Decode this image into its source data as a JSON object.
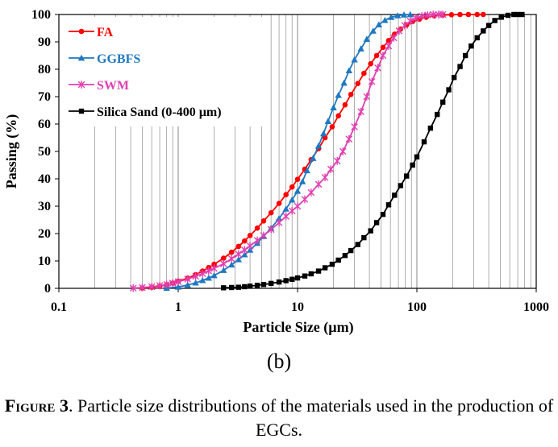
{
  "chart_data": {
    "type": "line",
    "title": "",
    "xlabel": "Particle Size (µm)",
    "ylabel": "Passing (%)",
    "xscale": "log",
    "xlim": [
      0.1,
      1000
    ],
    "ylim": [
      0,
      100
    ],
    "x_tick_labels": [
      "0.1",
      "1",
      "10",
      "100",
      "1000"
    ],
    "y_tick_labels": [
      "0",
      "10",
      "20",
      "30",
      "40",
      "50",
      "60",
      "70",
      "80",
      "90",
      "100"
    ],
    "grid": "vertical-minor",
    "legend_position": "top-left",
    "series": [
      {
        "name": "FA",
        "color": "#ff0000",
        "marker": "circle",
        "points": [
          [
            0.5,
            0.1
          ],
          [
            0.6,
            0.4
          ],
          [
            0.7,
            0.8
          ],
          [
            0.8,
            1.3
          ],
          [
            0.9,
            1.9
          ],
          [
            1.0,
            2.6
          ],
          [
            1.2,
            3.7
          ],
          [
            1.4,
            5.0
          ],
          [
            1.6,
            6.3
          ],
          [
            1.8,
            7.6
          ],
          [
            2.0,
            8.8
          ],
          [
            2.4,
            11.0
          ],
          [
            2.8,
            13.2
          ],
          [
            3.2,
            15.3
          ],
          [
            3.6,
            17.3
          ],
          [
            4.0,
            19.3
          ],
          [
            4.6,
            22.0
          ],
          [
            5.2,
            24.6
          ],
          [
            6.0,
            27.6
          ],
          [
            7.0,
            31.0
          ],
          [
            8.0,
            34.2
          ],
          [
            9.0,
            37.0
          ],
          [
            10.0,
            39.8
          ],
          [
            11.5,
            43.5
          ],
          [
            13.0,
            47.0
          ],
          [
            15.0,
            51.0
          ],
          [
            17.0,
            55.0
          ],
          [
            19.5,
            59.0
          ],
          [
            22.0,
            63.0
          ],
          [
            25.0,
            67.0
          ],
          [
            28.0,
            70.8
          ],
          [
            32.0,
            74.8
          ],
          [
            36.0,
            78.5
          ],
          [
            41.0,
            82.0
          ],
          [
            46.0,
            85.0
          ],
          [
            52.0,
            88.0
          ],
          [
            58.0,
            90.5
          ],
          [
            65.0,
            92.8
          ],
          [
            73.0,
            94.7
          ],
          [
            82.0,
            96.2
          ],
          [
            92.0,
            97.4
          ],
          [
            105.0,
            98.3
          ],
          [
            120.0,
            99.0
          ],
          [
            140.0,
            99.5
          ],
          [
            165.0,
            99.8
          ],
          [
            195.0,
            99.9
          ],
          [
            230.0,
            100
          ],
          [
            270.0,
            100
          ],
          [
            320.0,
            100
          ],
          [
            360.0,
            100
          ]
        ]
      },
      {
        "name": "GGBFS",
        "color": "#1f78c1",
        "marker": "triangle",
        "points": [
          [
            0.8,
            0.1
          ],
          [
            1.0,
            0.5
          ],
          [
            1.2,
            1.2
          ],
          [
            1.4,
            2.0
          ],
          [
            1.6,
            2.9
          ],
          [
            1.8,
            3.8
          ],
          [
            2.0,
            4.7
          ],
          [
            2.4,
            6.6
          ],
          [
            2.8,
            8.6
          ],
          [
            3.2,
            10.5
          ],
          [
            3.6,
            12.3
          ],
          [
            4.0,
            14.0
          ],
          [
            4.6,
            16.5
          ],
          [
            5.2,
            19.0
          ],
          [
            6.0,
            22.0
          ],
          [
            7.0,
            25.5
          ],
          [
            8.0,
            29.0
          ],
          [
            9.0,
            32.3
          ],
          [
            10.0,
            35.5
          ],
          [
            11.0,
            39.0
          ],
          [
            12.0,
            43.0
          ],
          [
            13.5,
            47.5
          ],
          [
            15.0,
            52.0
          ],
          [
            16.5,
            56.5
          ],
          [
            18.0,
            61.0
          ],
          [
            20.0,
            66.0
          ],
          [
            22.0,
            70.5
          ],
          [
            24.5,
            75.0
          ],
          [
            27.0,
            79.5
          ],
          [
            30.0,
            83.5
          ],
          [
            34.0,
            87.5
          ],
          [
            38.0,
            91.0
          ],
          [
            43.0,
            94.0
          ],
          [
            48.0,
            96.3
          ],
          [
            54.0,
            97.9
          ],
          [
            61.0,
            99.0
          ],
          [
            69.0,
            99.6
          ],
          [
            78.0,
            99.9
          ],
          [
            88.0,
            100
          ]
        ]
      },
      {
        "name": "SWM",
        "color": "#e040b0",
        "marker": "star",
        "points": [
          [
            0.42,
            0.1
          ],
          [
            0.5,
            0.3
          ],
          [
            0.6,
            0.6
          ],
          [
            0.7,
            1.0
          ],
          [
            0.8,
            1.4
          ],
          [
            0.9,
            1.9
          ],
          [
            1.0,
            2.4
          ],
          [
            1.2,
            3.4
          ],
          [
            1.4,
            4.4
          ],
          [
            1.6,
            5.4
          ],
          [
            1.8,
            6.4
          ],
          [
            2.0,
            7.3
          ],
          [
            2.4,
            9.0
          ],
          [
            2.8,
            10.8
          ],
          [
            3.2,
            12.5
          ],
          [
            3.6,
            14.0
          ],
          [
            4.0,
            15.5
          ],
          [
            4.6,
            17.5
          ],
          [
            5.2,
            19.3
          ],
          [
            6.0,
            21.5
          ],
          [
            7.0,
            24.0
          ],
          [
            8.0,
            26.3
          ],
          [
            9.0,
            28.3
          ],
          [
            10.0,
            30.0
          ],
          [
            11.5,
            32.5
          ],
          [
            13.0,
            35.0
          ],
          [
            15.0,
            38.0
          ],
          [
            17.0,
            40.5
          ],
          [
            19.0,
            43.5
          ],
          [
            21.5,
            46.5
          ],
          [
            24.0,
            50.0
          ],
          [
            27.0,
            54.5
          ],
          [
            30.0,
            59.0
          ],
          [
            34.0,
            64.5
          ],
          [
            38.0,
            70.0
          ],
          [
            42.0,
            75.5
          ],
          [
            47.0,
            80.5
          ],
          [
            52.0,
            85.0
          ],
          [
            58.0,
            88.5
          ],
          [
            64.0,
            91.5
          ],
          [
            71.0,
            94.0
          ],
          [
            79.0,
            96.0
          ],
          [
            88.0,
            97.6
          ],
          [
            98.0,
            98.7
          ],
          [
            110.0,
            99.4
          ],
          [
            123.0,
            99.8
          ],
          [
            137.0,
            100
          ],
          [
            152.0,
            100
          ],
          [
            165.0,
            100
          ]
        ]
      },
      {
        "name": "Silica Sand (0-400 µm)",
        "color": "#000000",
        "marker": "square",
        "points": [
          [
            2.4,
            0.2
          ],
          [
            2.8,
            0.3
          ],
          [
            3.2,
            0.4
          ],
          [
            3.6,
            0.6
          ],
          [
            4.0,
            0.8
          ],
          [
            4.6,
            1.1
          ],
          [
            5.2,
            1.4
          ],
          [
            6.0,
            1.8
          ],
          [
            7.0,
            2.3
          ],
          [
            8.0,
            2.8
          ],
          [
            9.0,
            3.3
          ],
          [
            10.0,
            3.8
          ],
          [
            11.5,
            4.5
          ],
          [
            13.0,
            5.3
          ],
          [
            15.0,
            6.3
          ],
          [
            17.0,
            7.5
          ],
          [
            19.5,
            8.8
          ],
          [
            22.0,
            10.3
          ],
          [
            25.0,
            12.0
          ],
          [
            28.0,
            13.8
          ],
          [
            32.0,
            16.0
          ],
          [
            36.0,
            18.5
          ],
          [
            41.0,
            21.0
          ],
          [
            46.0,
            24.0
          ],
          [
            52.0,
            27.0
          ],
          [
            58.0,
            30.5
          ],
          [
            65.0,
            34.0
          ],
          [
            73.0,
            37.5
          ],
          [
            82.0,
            41.0
          ],
          [
            92.0,
            45.0
          ],
          [
            100.0,
            48.0
          ],
          [
            115.0,
            53.5
          ],
          [
            130.0,
            58.5
          ],
          [
            148.0,
            63.5
          ],
          [
            165.0,
            68.0
          ],
          [
            185.0,
            72.5
          ],
          [
            205.0,
            77.0
          ],
          [
            230.0,
            81.0
          ],
          [
            255.0,
            85.0
          ],
          [
            285.0,
            88.5
          ],
          [
            320.0,
            91.5
          ],
          [
            360.0,
            94.0
          ],
          [
            400.0,
            96.0
          ],
          [
            450.0,
            97.8
          ],
          [
            510.0,
            99.0
          ],
          [
            580.0,
            99.7
          ],
          [
            650.0,
            100
          ],
          [
            700.0,
            100
          ],
          [
            760.0,
            100
          ]
        ]
      }
    ]
  },
  "panel_label": "(b)",
  "caption": {
    "label": "Figure 3",
    "text": ". Particle size distributions of the materials used in the production of EGCs."
  }
}
